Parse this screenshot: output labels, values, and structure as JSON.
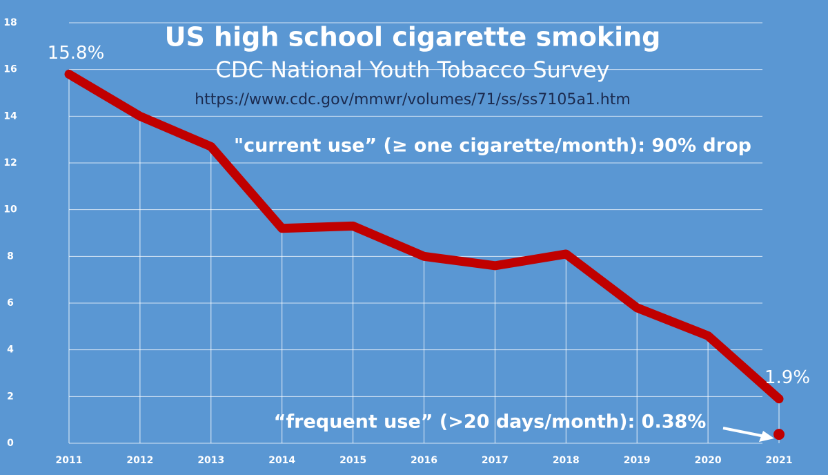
{
  "chart_data": {
    "type": "line",
    "title": "US high school cigarette smoking",
    "subtitle": "CDC National Youth Tobacco Survey",
    "source": "https://www.cdc.gov/mmwr/volumes/71/ss/ss7105a1.htm",
    "annotations": [
      "\"current use” (≥ one cigarette/month):  90% drop",
      "“frequent use” (>20 days/month):  0.38%"
    ],
    "categories": [
      "2011",
      "2012",
      "2013",
      "2014",
      "2015",
      "2016",
      "2017",
      "2018",
      "2019",
      "2020",
      "2021"
    ],
    "series": [
      {
        "color": "#c00000",
        "values": [
          15.8,
          14.0,
          12.7,
          9.2,
          9.3,
          8.0,
          7.6,
          8.1,
          5.8,
          4.6,
          1.9
        ],
        "value_labels": [
          "15.8%",
          null,
          null,
          null,
          null,
          null,
          null,
          null,
          null,
          null,
          "1.9%"
        ]
      },
      {
        "color": "#c00000",
        "values": [
          null,
          null,
          null,
          null,
          null,
          null,
          null,
          null,
          null,
          null,
          0.38
        ]
      }
    ],
    "ylim": [
      0,
      18
    ],
    "yticks": [
      0,
      2,
      4,
      6,
      8,
      10,
      12,
      14,
      16,
      18
    ],
    "grid": true
  }
}
